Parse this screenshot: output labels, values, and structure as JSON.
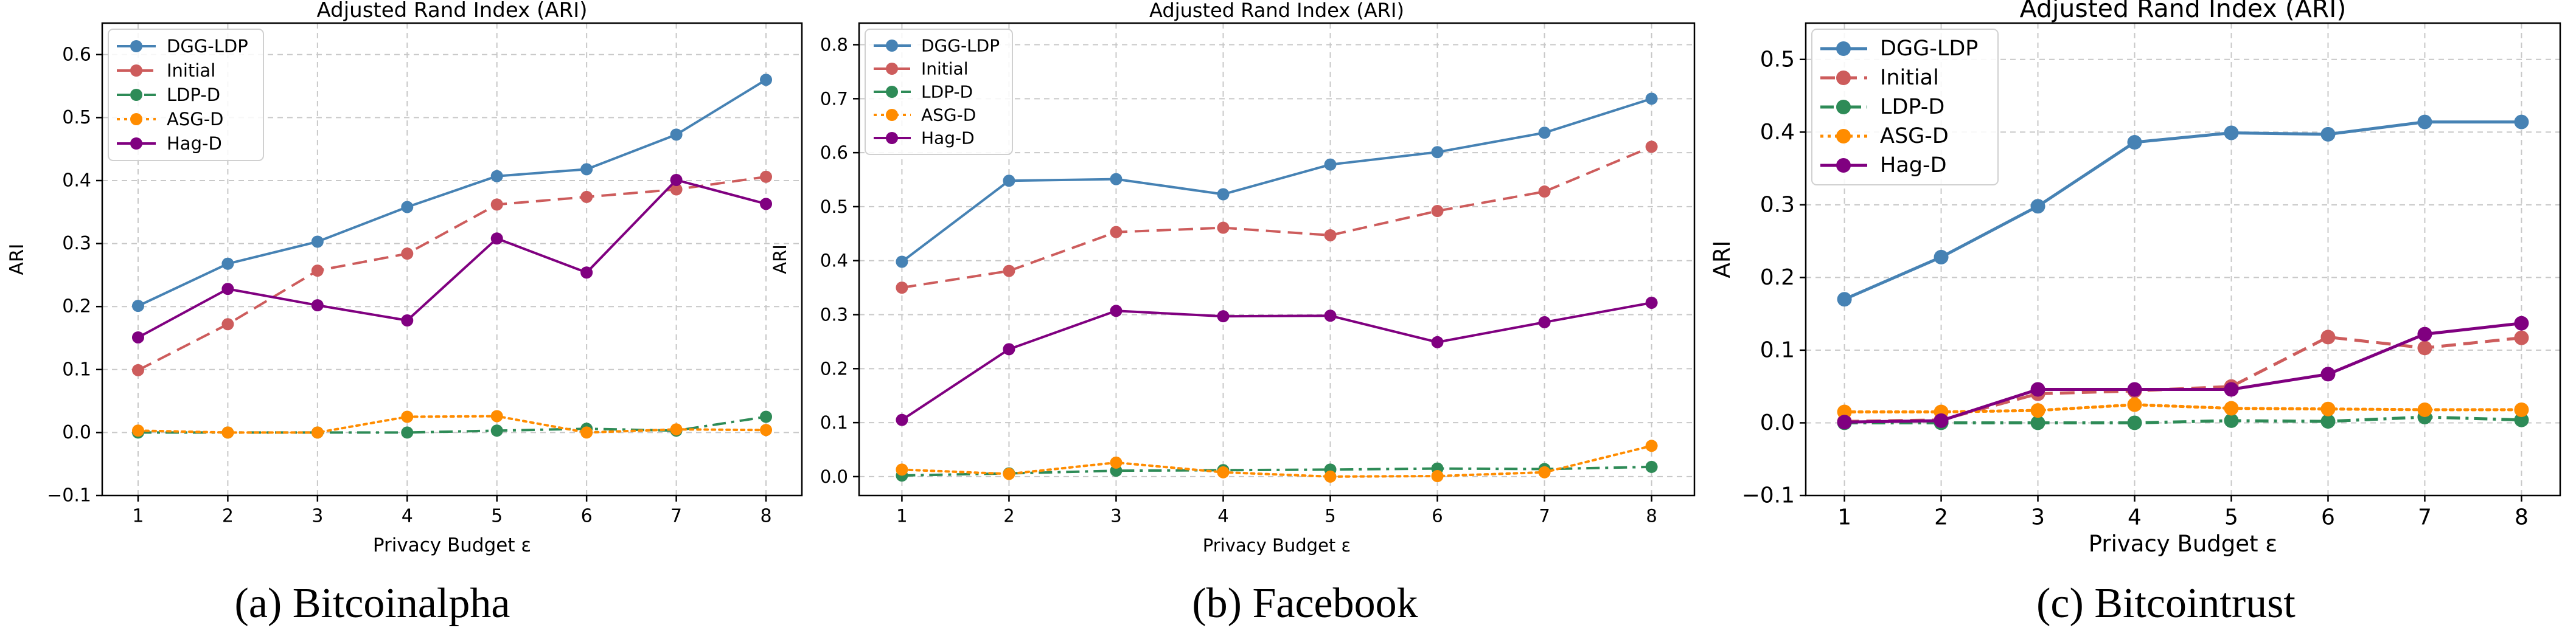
{
  "figure": {
    "captions": [
      "(a) Bitcoinalpha",
      "(b) Facebook",
      "(c) Bitcointrust"
    ]
  },
  "chart_data": [
    {
      "type": "line",
      "title": "Adjusted Rand Index (ARI)",
      "xlabel": "Privacy Budget ε",
      "ylabel": "ARI",
      "x": [
        1,
        2,
        3,
        4,
        5,
        6,
        7,
        8
      ],
      "xlim": [
        0.6,
        8.4
      ],
      "ylim": [
        -0.1,
        0.65
      ],
      "yticks": [
        -0.1,
        0.0,
        0.1,
        0.2,
        0.3,
        0.4,
        0.5,
        0.6
      ],
      "ytick_labels": [
        "−0.1",
        "0.0",
        "0.1",
        "0.2",
        "0.3",
        "0.4",
        "0.5",
        "0.6"
      ],
      "grid": true,
      "legend_position": "top-left",
      "series": [
        {
          "name": "DGG-LDP",
          "color": "#4682b4",
          "style": "solid",
          "values": [
            0.201,
            0.268,
            0.303,
            0.358,
            0.407,
            0.418,
            0.473,
            0.56
          ]
        },
        {
          "name": "Initial",
          "color": "#cd5c5c",
          "style": "dashed",
          "values": [
            0.099,
            0.172,
            0.257,
            0.284,
            0.362,
            0.374,
            0.386,
            0.406
          ]
        },
        {
          "name": "LDP-D",
          "color": "#2e8b57",
          "style": "dashdot",
          "values": [
            0.0,
            0.0,
            0.0,
            0.0,
            0.003,
            0.006,
            0.003,
            0.025
          ]
        },
        {
          "name": "ASG-D",
          "color": "#ff8c00",
          "style": "dotted",
          "values": [
            0.003,
            0.0,
            0.0,
            0.025,
            0.026,
            0.0,
            0.005,
            0.004
          ]
        },
        {
          "name": "Hag-D",
          "color": "#800080",
          "style": "solid",
          "values": [
            0.151,
            0.228,
            0.202,
            0.178,
            0.308,
            0.254,
            0.401,
            0.363
          ]
        }
      ]
    },
    {
      "type": "line",
      "title": "Adjusted Rand Index (ARI)",
      "xlabel": "Privacy Budget ε",
      "ylabel": "ARI",
      "x": [
        1,
        2,
        3,
        4,
        5,
        6,
        7,
        8
      ],
      "xlim": [
        0.6,
        8.4
      ],
      "ylim": [
        -0.035,
        0.84
      ],
      "yticks": [
        0.0,
        0.1,
        0.2,
        0.3,
        0.4,
        0.5,
        0.6,
        0.7,
        0.8
      ],
      "ytick_labels": [
        "0.0",
        "0.1",
        "0.2",
        "0.3",
        "0.4",
        "0.5",
        "0.6",
        "0.7",
        "0.8"
      ],
      "grid": true,
      "legend_position": "top-left",
      "series": [
        {
          "name": "DGG-LDP",
          "color": "#4682b4",
          "style": "solid",
          "values": [
            0.398,
            0.548,
            0.551,
            0.523,
            0.578,
            0.601,
            0.637,
            0.7
          ]
        },
        {
          "name": "Initial",
          "color": "#cd5c5c",
          "style": "dashed",
          "values": [
            0.35,
            0.381,
            0.453,
            0.461,
            0.447,
            0.492,
            0.528,
            0.611
          ]
        },
        {
          "name": "LDP-D",
          "color": "#2e8b57",
          "style": "dashdot",
          "values": [
            0.002,
            0.006,
            0.011,
            0.012,
            0.013,
            0.015,
            0.014,
            0.018
          ]
        },
        {
          "name": "ASG-D",
          "color": "#ff8c00",
          "style": "dotted",
          "values": [
            0.013,
            0.005,
            0.026,
            0.008,
            0.0,
            0.001,
            0.008,
            0.057
          ]
        },
        {
          "name": "Hag-D",
          "color": "#800080",
          "style": "solid",
          "values": [
            0.105,
            0.236,
            0.307,
            0.297,
            0.298,
            0.249,
            0.286,
            0.322
          ]
        }
      ]
    },
    {
      "type": "line",
      "title": "Adjusted Rand Index (ARI)",
      "xlabel": "Privacy Budget ε",
      "ylabel": "ARI",
      "x": [
        1,
        2,
        3,
        4,
        5,
        6,
        7,
        8
      ],
      "xlim": [
        0.6,
        8.4
      ],
      "ylim": [
        -0.1,
        0.55
      ],
      "yticks": [
        -0.1,
        0.0,
        0.1,
        0.2,
        0.3,
        0.4,
        0.5
      ],
      "ytick_labels": [
        "−0.1",
        "0.0",
        "0.1",
        "0.2",
        "0.3",
        "0.4",
        "0.5"
      ],
      "grid": true,
      "legend_position": "top-left",
      "series": [
        {
          "name": "DGG-LDP",
          "color": "#4682b4",
          "style": "solid",
          "values": [
            0.17,
            0.228,
            0.298,
            0.386,
            0.399,
            0.397,
            0.414,
            0.414
          ]
        },
        {
          "name": "Initial",
          "color": "#cd5c5c",
          "style": "dashed",
          "values": [
            0.002,
            0.004,
            0.04,
            0.044,
            0.05,
            0.118,
            0.103,
            0.117
          ]
        },
        {
          "name": "LDP-D",
          "color": "#2e8b57",
          "style": "dashdot",
          "values": [
            0.0,
            0.0,
            0.0,
            0.0,
            0.003,
            0.002,
            0.008,
            0.004
          ]
        },
        {
          "name": "ASG-D",
          "color": "#ff8c00",
          "style": "dotted",
          "values": [
            0.015,
            0.015,
            0.017,
            0.025,
            0.02,
            0.019,
            0.018,
            0.018
          ]
        },
        {
          "name": "Hag-D",
          "color": "#800080",
          "style": "solid",
          "values": [
            0.001,
            0.003,
            0.046,
            0.046,
            0.046,
            0.067,
            0.122,
            0.137
          ]
        }
      ]
    }
  ]
}
